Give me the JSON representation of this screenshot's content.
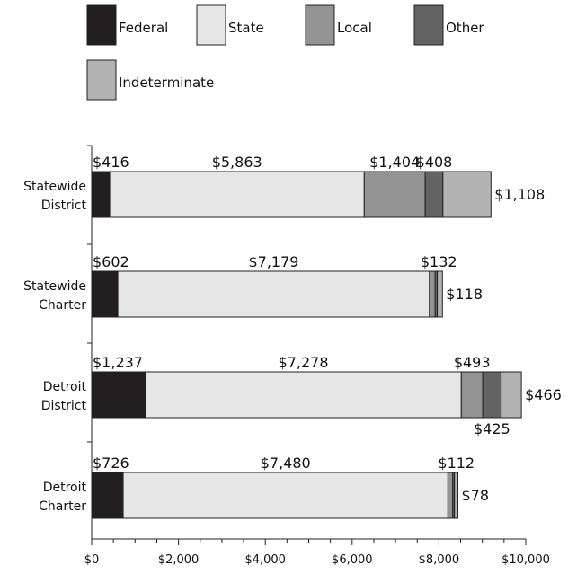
{
  "chart_data": {
    "type": "bar",
    "orientation": "horizontal",
    "stacked": true,
    "categories": [
      "Statewide District",
      "Statewide Charter",
      "Detroit District",
      "Detroit Charter"
    ],
    "category_lines": [
      [
        "Statewide",
        "District"
      ],
      [
        "Statewide",
        "Charter"
      ],
      [
        "Detroit",
        "District"
      ],
      [
        "Detroit",
        "Charter"
      ]
    ],
    "series": [
      {
        "name": "Federal",
        "color": "#231f20",
        "values": [
          416,
          602,
          1237,
          726
        ],
        "labels": [
          "$416",
          "$602",
          "$1,237",
          "$726"
        ]
      },
      {
        "name": "State",
        "color": "#e6e6e6",
        "values": [
          5863,
          7179,
          7278,
          7480
        ],
        "labels": [
          "$5,863",
          "$7,179",
          "$7,278",
          "$7,480"
        ]
      },
      {
        "name": "Local",
        "color": "#939393",
        "values": [
          1404,
          132,
          493,
          112
        ],
        "labels": [
          "$1,404",
          "$132",
          "$493",
          "$112"
        ]
      },
      {
        "name": "Other",
        "color": "#636363",
        "values": [
          408,
          50,
          425,
          40
        ],
        "labels": [
          "$408",
          "",
          "$425",
          ""
        ]
      },
      {
        "name": "Indeterminate",
        "color": "#b3b3b3",
        "values": [
          1108,
          118,
          466,
          78
        ],
        "labels": [
          "$1,108",
          "$118",
          "$466",
          "$78"
        ]
      }
    ],
    "xlim": [
      0,
      10000
    ],
    "x_ticks": [
      0,
      2000,
      4000,
      6000,
      8000,
      10000
    ],
    "x_tick_labels": [
      "$0",
      "$2,000",
      "$4,000",
      "$6,000",
      "$8,000",
      "$10,000"
    ],
    "legend_position": "top",
    "grid": false
  }
}
